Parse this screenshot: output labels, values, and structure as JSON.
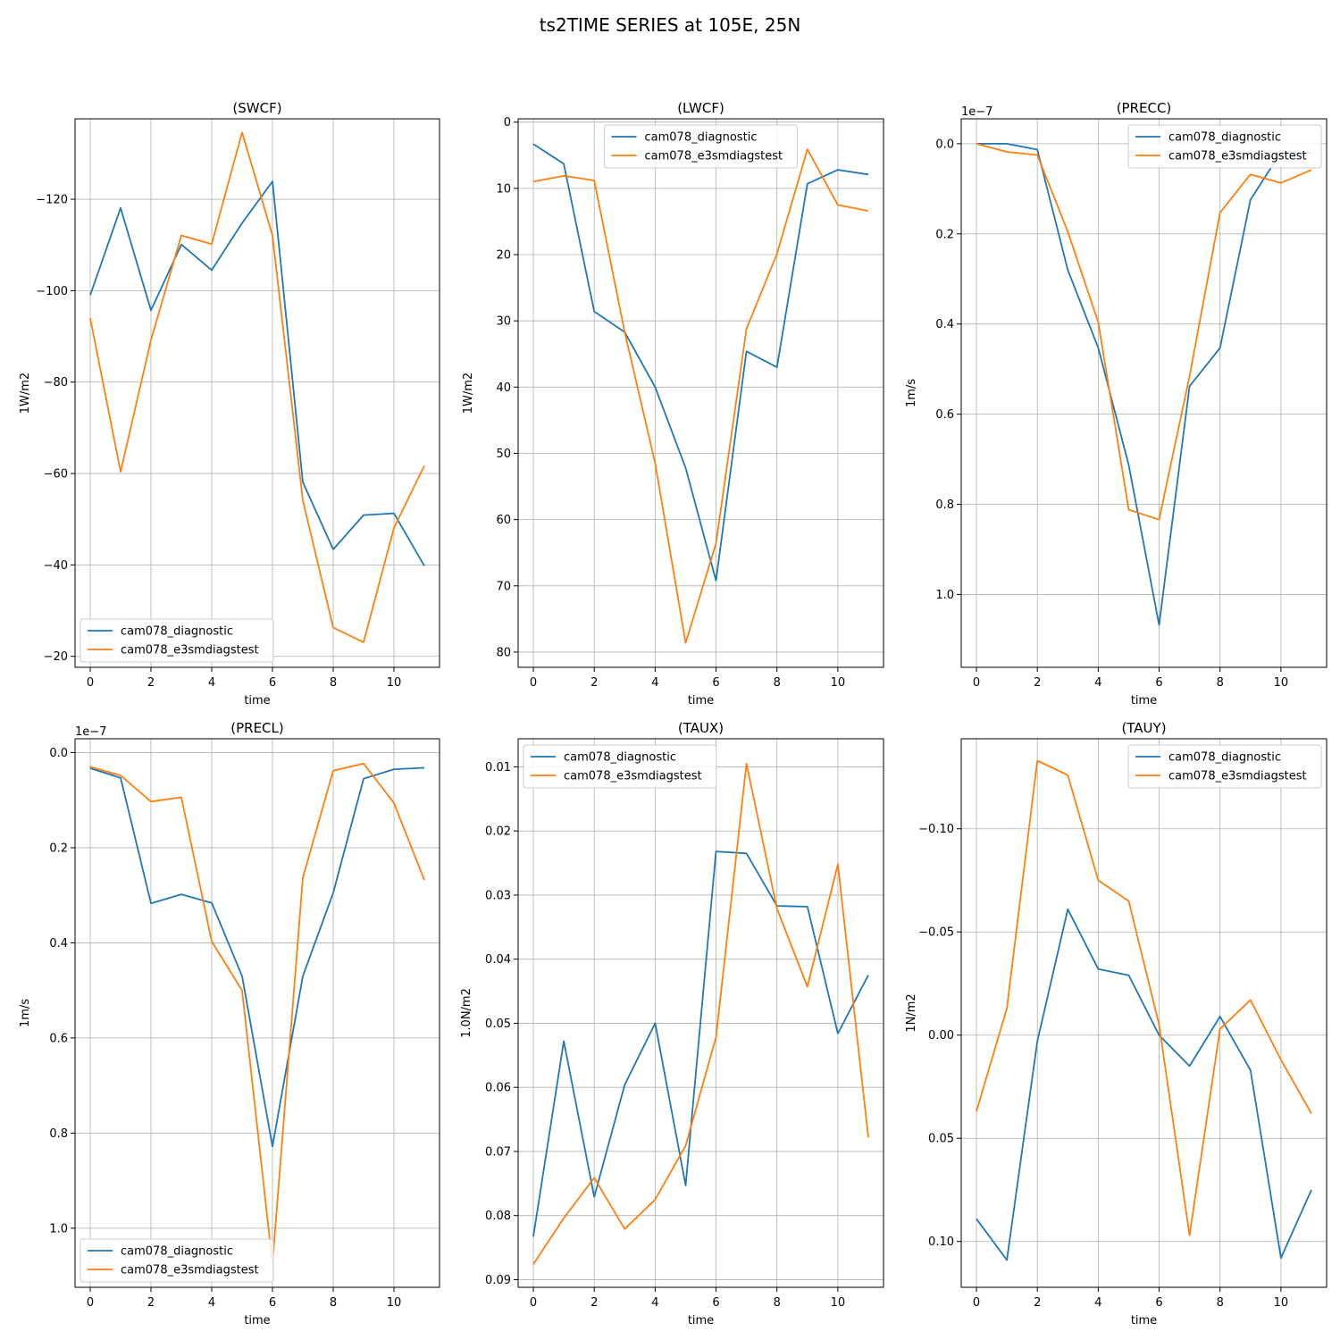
{
  "suptitle": "ts2TIME SERIES at 105E, 25N",
  "colors": {
    "diagnostic": "#1f77b4",
    "e3sm": "#ff7f0e",
    "grid": "#b0b0b0",
    "axis": "#000000"
  },
  "legend_labels": [
    "cam078_diagnostic",
    "cam078_e3smdiagstest"
  ],
  "chart_data": [
    {
      "type": "line",
      "title": "(SWCF)",
      "xlabel": "time",
      "ylabel": "1W/m2",
      "y_inverted": true,
      "x": [
        0,
        1,
        2,
        3,
        4,
        5,
        6,
        7,
        8,
        9,
        10,
        11
      ],
      "xlim": [
        -0.5,
        11.5
      ],
      "xticks": [
        0,
        2,
        4,
        6,
        8,
        10
      ],
      "ylim": [
        -137.6,
        -17.6
      ],
      "yticks": [
        -120,
        -100,
        -80,
        -60,
        -40,
        -20
      ],
      "ytick_labels": [
        "−120",
        "−100",
        "−80",
        "−60",
        "−40",
        "−20"
      ],
      "offset_text": "",
      "legend_loc": "lower-left",
      "series": [
        {
          "name": "cam078_diagnostic",
          "values": [
            -99.0,
            -118.1,
            -95.7,
            -110.1,
            -104.5,
            -114.8,
            -123.9,
            -58.1,
            -43.4,
            -50.9,
            -51.3,
            -39.8
          ]
        },
        {
          "name": "cam078_e3smdiagstest",
          "values": [
            -94.0,
            -60.4,
            -89.2,
            -112.1,
            -110.2,
            -134.6,
            -112.1,
            -54.1,
            -26.3,
            -23.1,
            -48.1,
            -61.7
          ]
        }
      ]
    },
    {
      "type": "line",
      "title": "(LWCF)",
      "xlabel": "time",
      "ylabel": "1W/m2",
      "y_inverted": true,
      "x": [
        0,
        1,
        2,
        3,
        4,
        5,
        6,
        7,
        8,
        9,
        10,
        11
      ],
      "xlim": [
        -0.5,
        11.5
      ],
      "xticks": [
        0,
        2,
        4,
        6,
        8,
        10
      ],
      "ylim": [
        -0.5,
        82.3
      ],
      "yticks": [
        0,
        10,
        20,
        30,
        40,
        50,
        60,
        70,
        80
      ],
      "ytick_labels": [
        "0",
        "10",
        "20",
        "30",
        "40",
        "50",
        "60",
        "70",
        "80"
      ],
      "offset_text": "",
      "legend_loc": "upper-center",
      "series": [
        {
          "name": "cam078_diagnostic",
          "values": [
            3.3,
            6.3,
            28.6,
            31.7,
            40.0,
            52.2,
            69.2,
            34.6,
            37.0,
            9.3,
            7.2,
            7.9
          ]
        },
        {
          "name": "cam078_e3smdiagstest",
          "values": [
            9.0,
            8.1,
            8.8,
            31.7,
            51.5,
            78.6,
            63.6,
            31.2,
            19.9,
            4.1,
            12.5,
            13.4
          ]
        }
      ]
    },
    {
      "type": "line",
      "title": "(PRECC)",
      "xlabel": "time",
      "ylabel": "1m/s",
      "y_inverted": true,
      "x": [
        0,
        1,
        2,
        3,
        4,
        5,
        6,
        7,
        8,
        9,
        10,
        11
      ],
      "xlim": [
        -0.5,
        11.5
      ],
      "xticks": [
        0,
        2,
        4,
        6,
        8,
        10
      ],
      "ylim": [
        -0.0553,
        1.1617
      ],
      "yticks": [
        0.0,
        0.2,
        0.4,
        0.6,
        0.8,
        1.0
      ],
      "ytick_labels": [
        "0.0",
        "0.2",
        "0.4",
        "0.6",
        "0.8",
        "1.0"
      ],
      "offset_text": "1e−7",
      "legend_loc": "upper-right",
      "series": [
        {
          "name": "cam078_diagnostic",
          "values": [
            0.0,
            0.0,
            0.013,
            0.28,
            0.453,
            0.713,
            1.068,
            0.538,
            0.453,
            0.124,
            0.019,
            0.02
          ]
        },
        {
          "name": "cam078_e3smdiagstest",
          "values": [
            0.0,
            0.018,
            0.025,
            0.195,
            0.396,
            0.812,
            0.834,
            0.516,
            0.153,
            0.068,
            0.087,
            0.058
          ]
        }
      ]
    },
    {
      "type": "line",
      "title": "(PRECL)",
      "xlabel": "time",
      "ylabel": "1m/s",
      "y_inverted": true,
      "x": [
        0,
        1,
        2,
        3,
        4,
        5,
        6,
        7,
        8,
        9,
        10,
        11
      ],
      "xlim": [
        -0.5,
        11.5
      ],
      "xticks": [
        0,
        2,
        4,
        6,
        8,
        10
      ],
      "ylim": [
        -0.029,
        1.1242
      ],
      "yticks": [
        0.0,
        0.2,
        0.4,
        0.6,
        0.8,
        1.0
      ],
      "ytick_labels": [
        "0.0",
        "0.2",
        "0.4",
        "0.6",
        "0.8",
        "1.0"
      ],
      "offset_text": "1e−7",
      "legend_loc": "lower-left",
      "series": [
        {
          "name": "cam078_diagnostic",
          "values": [
            0.033,
            0.053,
            0.317,
            0.298,
            0.316,
            0.47,
            0.828,
            0.47,
            0.295,
            0.055,
            0.035,
            0.032
          ]
        },
        {
          "name": "cam078_e3smdiagstest",
          "values": [
            0.03,
            0.048,
            0.103,
            0.094,
            0.397,
            0.5,
            1.075,
            0.263,
            0.038,
            0.023,
            0.106,
            0.268
          ]
        }
      ]
    },
    {
      "type": "line",
      "title": "(TAUX)",
      "xlabel": "time",
      "ylabel": "1.0N/m2",
      "y_inverted": true,
      "x": [
        0,
        1,
        2,
        3,
        4,
        5,
        6,
        7,
        8,
        9,
        10,
        11
      ],
      "xlim": [
        -0.5,
        11.5
      ],
      "xticks": [
        0,
        2,
        4,
        6,
        8,
        10
      ],
      "ylim": [
        0.00562,
        0.09119
      ],
      "yticks": [
        0.01,
        0.02,
        0.03,
        0.04,
        0.05,
        0.06,
        0.07,
        0.08,
        0.09
      ],
      "ytick_labels": [
        "0.01",
        "0.02",
        "0.03",
        "0.04",
        "0.05",
        "0.06",
        "0.07",
        "0.08",
        "0.09"
      ],
      "offset_text": "",
      "legend_loc": "upper-left",
      "series": [
        {
          "name": "cam078_diagnostic",
          "values": [
            0.0833,
            0.0528,
            0.0771,
            0.0596,
            0.05,
            0.0753,
            0.0232,
            0.0235,
            0.0317,
            0.0318,
            0.0516,
            0.0425
          ]
        },
        {
          "name": "cam078_e3smdiagstest",
          "values": [
            0.0876,
            0.0804,
            0.0741,
            0.0821,
            0.0775,
            0.0691,
            0.0522,
            0.0095,
            0.0321,
            0.0443,
            0.0252,
            0.0678
          ]
        }
      ]
    },
    {
      "type": "line",
      "title": "(TAUY)",
      "xlabel": "time",
      "ylabel": "1N/m2",
      "y_inverted": true,
      "x": [
        0,
        1,
        2,
        3,
        4,
        5,
        6,
        7,
        8,
        9,
        10,
        11
      ],
      "xlim": [
        -0.5,
        11.5
      ],
      "xticks": [
        0,
        2,
        4,
        6,
        8,
        10
      ],
      "ylim": [
        -0.1436,
        0.1222
      ],
      "yticks": [
        -0.1,
        -0.05,
        0.0,
        0.05,
        0.1
      ],
      "ytick_labels": [
        "−0.10",
        "−0.05",
        "0.00",
        "0.05",
        "0.10"
      ],
      "offset_text": "",
      "legend_loc": "upper-right",
      "series": [
        {
          "name": "cam078_diagnostic",
          "values": [
            0.089,
            0.109,
            0.003,
            -0.061,
            -0.032,
            -0.029,
            0.0,
            0.015,
            -0.009,
            0.017,
            0.108,
            0.075
          ]
        },
        {
          "name": "cam078_e3smdiagstest",
          "values": [
            0.037,
            -0.013,
            -0.133,
            -0.126,
            -0.075,
            -0.065,
            -0.005,
            0.097,
            -0.003,
            -0.017,
            0.012,
            0.038
          ]
        }
      ]
    }
  ]
}
